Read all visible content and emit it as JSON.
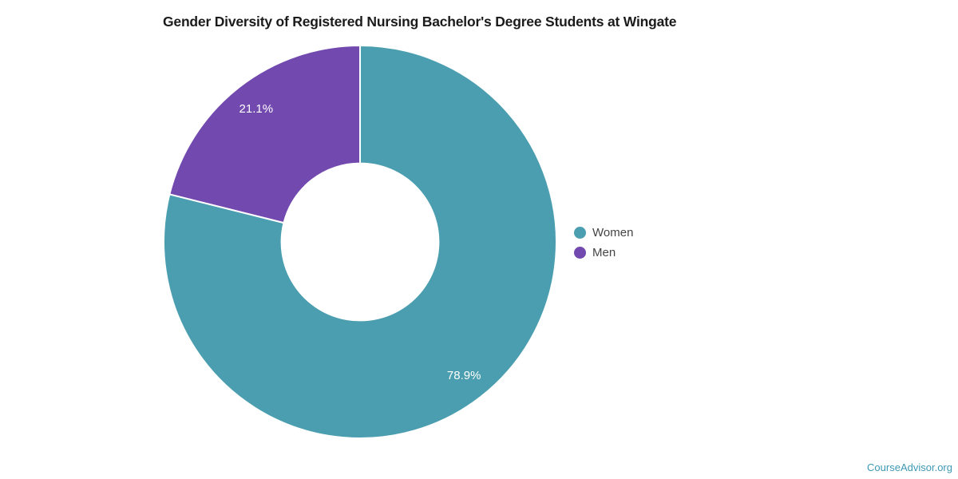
{
  "title": "Gender Diversity of Registered Nursing Bachelor's Degree Students at Wingate",
  "footer": {
    "brand": "CourseAdvisor.org",
    "color": "#3E98B3"
  },
  "chart_data": {
    "type": "pie",
    "subtype": "donut",
    "title": "Gender Diversity of Registered Nursing Bachelor's Degree Students at Wingate",
    "labels": [
      "Women",
      "Men"
    ],
    "values": [
      78.9,
      21.1
    ],
    "value_labels": [
      "78.9%",
      "21.1%"
    ],
    "colors": [
      "#4A9EAF",
      "#7249AE"
    ],
    "slice_label_color": "#ffffff",
    "hole_ratio": 0.4,
    "start_angle_deg": 0,
    "direction": "clockwise",
    "legend_position": "right",
    "separator_color": "#ffffff"
  }
}
